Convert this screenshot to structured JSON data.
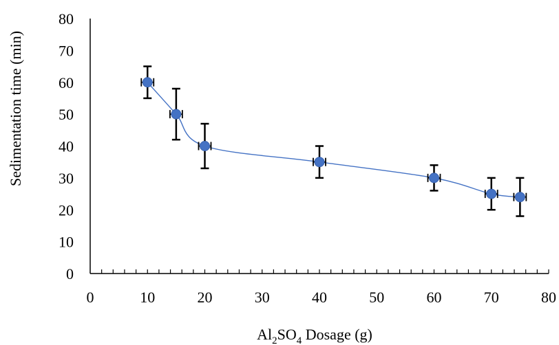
{
  "chart_data": {
    "type": "scatter",
    "xlabel": {
      "main": "Al",
      "sub1": "2",
      "mid": "SO",
      "sub2": "4",
      "tail": " Dosage (g)"
    },
    "ylabel": "Sedimentation time (min)",
    "xlim": [
      0,
      80
    ],
    "ylim": [
      0,
      80
    ],
    "x_ticks": [
      0,
      10,
      20,
      30,
      40,
      50,
      60,
      70,
      80
    ],
    "y_ticks": [
      0,
      10,
      20,
      30,
      40,
      50,
      60,
      70,
      80
    ],
    "x_minor_step": 2,
    "grid": false,
    "legend": "none",
    "series": [
      {
        "x": [
          10,
          15,
          20,
          40,
          60,
          70,
          75
        ],
        "y": [
          60,
          50,
          40,
          35,
          30,
          25,
          24
        ],
        "y_err_low": [
          5,
          8,
          7,
          5,
          4,
          5,
          6
        ],
        "y_err_high": [
          5,
          8,
          7,
          5,
          4,
          5,
          6
        ],
        "x_err": [
          0.6,
          0.6,
          0.6,
          0.6,
          0.6,
          0.6,
          0.6
        ],
        "line": "smooth"
      }
    ],
    "colors": {
      "marker": "#4472C4",
      "line": "#4472C4",
      "error_bar": "#000000",
      "axis": "#000000"
    }
  }
}
